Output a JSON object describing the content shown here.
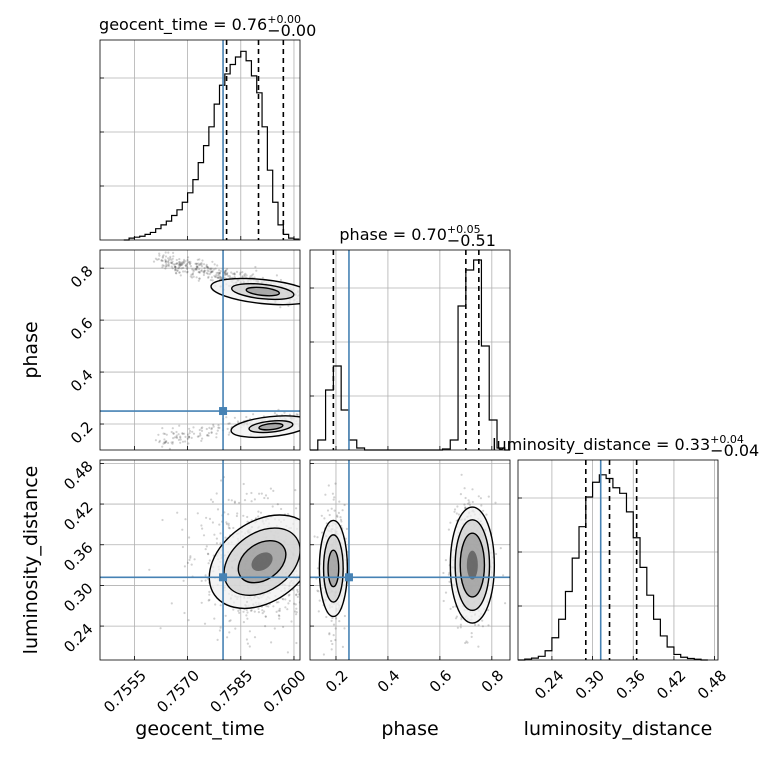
{
  "chart_data": {
    "type": "corner",
    "parameters": [
      "geocent_time",
      "phase",
      "luminosity_distance"
    ],
    "axis_labels": {
      "geocent_time": "geocent_time",
      "phase": "phase",
      "luminosity_distance": "luminosity_distance"
    },
    "titles": [
      {
        "param": "geocent_time",
        "name": "geocent_time",
        "median": "0.76",
        "plus": "+0.00",
        "minus": "−0.00"
      },
      {
        "param": "phase",
        "name": "phase",
        "median": "0.70",
        "plus": "+0.05",
        "minus": "−0.51"
      },
      {
        "param": "luminosity_distance",
        "name": "luminosity_distance",
        "median": "0.33",
        "plus": "+0.04",
        "minus": "−0.04"
      }
    ],
    "ranges": {
      "geocent_time": [
        0.75453,
        0.76017
      ],
      "phase": [
        0.1,
        0.87
      ],
      "luminosity_distance": [
        0.19,
        0.485
      ]
    },
    "ticks": {
      "geocent_time": {
        "values": [
          0.7555,
          0.757,
          0.7585,
          0.76
        ],
        "labels": [
          "0.7555",
          "0.7570",
          "0.7585",
          "0.7600"
        ]
      },
      "phase": {
        "values": [
          0.2,
          0.4,
          0.6,
          0.8
        ],
        "labels": [
          "0.2",
          "0.4",
          "0.6",
          "0.8"
        ]
      },
      "luminosity_distance": {
        "values": [
          0.24,
          0.3,
          0.36,
          0.42,
          0.48
        ],
        "labels": [
          "0.24",
          "0.30",
          "0.36",
          "0.42",
          "0.48"
        ]
      }
    },
    "truths": {
      "geocent_time": 0.758,
      "phase": 0.25,
      "luminosity_distance": 0.312
    },
    "quantiles": {
      "geocent_time": [
        0.7581,
        0.759,
        0.7597
      ],
      "phase": [
        0.19,
        0.7,
        0.75
      ],
      "luminosity_distance": [
        0.29,
        0.325,
        0.365
      ]
    },
    "histograms": {
      "geocent_time": {
        "edges": [
          0.7552,
          0.75535,
          0.7555,
          0.75565,
          0.7558,
          0.75595,
          0.7561,
          0.75625,
          0.7564,
          0.75655,
          0.7567,
          0.75685,
          0.757,
          0.75715,
          0.7573,
          0.75745,
          0.7576,
          0.75775,
          0.7579,
          0.75805,
          0.7582,
          0.75835,
          0.7585,
          0.75865,
          0.7588,
          0.75895,
          0.7591,
          0.75925,
          0.7594,
          0.75955,
          0.7597,
          0.75985,
          0.76,
          0.76015
        ],
        "counts": [
          0,
          0.01,
          0.015,
          0.02,
          0.03,
          0.04,
          0.06,
          0.08,
          0.1,
          0.13,
          0.16,
          0.2,
          0.25,
          0.32,
          0.41,
          0.5,
          0.6,
          0.72,
          0.82,
          0.88,
          0.93,
          0.97,
          1.0,
          0.95,
          0.87,
          0.78,
          0.6,
          0.37,
          0.2,
          0.08,
          0.03,
          0.01,
          0.005
        ],
        "ymax": 1.06
      },
      "phase": {
        "edges": [
          0.1,
          0.13,
          0.16,
          0.19,
          0.22,
          0.25,
          0.28,
          0.31,
          0.34,
          0.37,
          0.4,
          0.43,
          0.46,
          0.49,
          0.52,
          0.55,
          0.58,
          0.61,
          0.64,
          0.67,
          0.7,
          0.73,
          0.76,
          0.79,
          0.82,
          0.85,
          0.87
        ],
        "counts": [
          0,
          0.05,
          0.3,
          0.42,
          0.2,
          0.05,
          0.01,
          0,
          0,
          0,
          0,
          0,
          0,
          0,
          0,
          0,
          0,
          0.005,
          0.05,
          0.72,
          0.9,
          0.95,
          0.52,
          0.15,
          0.01,
          0
        ],
        "ymax": 1.0
      },
      "luminosity_distance": {
        "edges": [
          0.19,
          0.2,
          0.21,
          0.22,
          0.23,
          0.24,
          0.25,
          0.26,
          0.27,
          0.28,
          0.29,
          0.3,
          0.31,
          0.32,
          0.33,
          0.34,
          0.35,
          0.36,
          0.37,
          0.38,
          0.39,
          0.4,
          0.41,
          0.42,
          0.43,
          0.44,
          0.45,
          0.46,
          0.47
        ],
        "counts": [
          0,
          0.005,
          0.01,
          0.02,
          0.05,
          0.12,
          0.22,
          0.37,
          0.55,
          0.72,
          0.88,
          0.96,
          1.0,
          0.98,
          0.93,
          0.9,
          0.8,
          0.66,
          0.5,
          0.35,
          0.22,
          0.13,
          0.07,
          0.03,
          0.015,
          0.008,
          0.004,
          0
        ],
        "ymax": 1.08
      }
    },
    "grid": true
  }
}
